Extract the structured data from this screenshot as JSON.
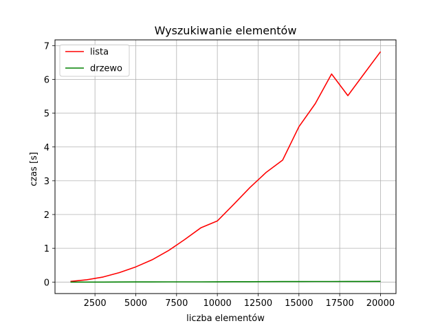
{
  "chart_data": {
    "type": "line",
    "title": "Wyszukiwanie elementów",
    "xlabel": "liczba elementów",
    "ylabel": "czas [s]",
    "xlim": [
      50,
      20950
    ],
    "ylim": [
      -0.34,
      7.17
    ],
    "xticks": [
      2500,
      5000,
      7500,
      10000,
      12500,
      15000,
      17500,
      20000
    ],
    "xtick_labels": [
      "2500",
      "5000",
      "7500",
      "10000",
      "12500",
      "15000",
      "17500",
      "20000"
    ],
    "yticks": [
      0,
      1,
      2,
      3,
      4,
      5,
      6,
      7
    ],
    "ytick_labels": [
      "0",
      "1",
      "2",
      "3",
      "4",
      "5",
      "6",
      "7"
    ],
    "grid": true,
    "legend_position": "upper-left",
    "x": [
      1000,
      2000,
      3000,
      4000,
      5000,
      6000,
      7000,
      8000,
      9000,
      10000,
      11000,
      12000,
      13000,
      14000,
      15000,
      16000,
      17000,
      18000,
      19000,
      20000
    ],
    "series": [
      {
        "name": "lista",
        "color": "#ff0000",
        "values": [
          0.02,
          0.07,
          0.15,
          0.28,
          0.45,
          0.66,
          0.93,
          1.26,
          1.61,
          1.81,
          2.3,
          2.8,
          3.25,
          3.61,
          4.6,
          5.28,
          6.16,
          5.52,
          6.17,
          6.82
        ]
      },
      {
        "name": "drzewo",
        "color": "#008000",
        "values": [
          0.0,
          0.0,
          0.0,
          0.002,
          0.003,
          0.004,
          0.005,
          0.006,
          0.007,
          0.009,
          0.01,
          0.011,
          0.012,
          0.014,
          0.015,
          0.016,
          0.017,
          0.018,
          0.019,
          0.021
        ]
      }
    ]
  }
}
